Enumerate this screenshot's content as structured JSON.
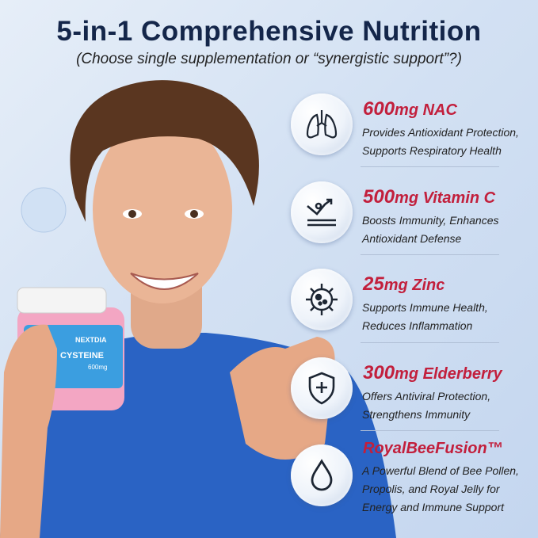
{
  "title": "5-in-1 Comprehensive Nutrition",
  "subtitle": "(Choose single supplementation or “synergistic support”?)",
  "product": {
    "brand": "NEXTDIA",
    "name": "CYSTEINE",
    "dose": "600mg"
  },
  "features": [
    {
      "icon": "lungs-icon",
      "amount": "600",
      "unit": "mg",
      "name": " NAC",
      "lines": [
        "Provides Antioxidant Protection,",
        "Supports Respiratory Health"
      ]
    },
    {
      "icon": "rising-arrow-icon",
      "amount": "500",
      "unit": "mg",
      "name": " Vitamin C",
      "lines": [
        "Boosts Immunity, Enhances",
        "Antioxidant Defense"
      ]
    },
    {
      "icon": "virus-icon",
      "amount": "25",
      "unit": "mg",
      "name": " Zinc",
      "lines": [
        "Supports Immune Health,",
        "Reduces Inflammation"
      ]
    },
    {
      "icon": "shield-plus-icon",
      "amount": "300",
      "unit": "mg",
      "name": " Elderberry",
      "lines": [
        "Offers Antiviral Protection,",
        "Strengthens Immunity"
      ]
    },
    {
      "icon": "droplet-icon",
      "amount": "",
      "unit": "",
      "name": "RoyalBeeFusion™",
      "lines": [
        "A Powerful Blend of Bee Pollen,",
        "Propolis, and Royal Jelly for",
        "Energy and Immune Support"
      ]
    }
  ],
  "colors": {
    "title": "#14264a",
    "accent": "#c21f3c",
    "shirt": "#2a63c4"
  }
}
